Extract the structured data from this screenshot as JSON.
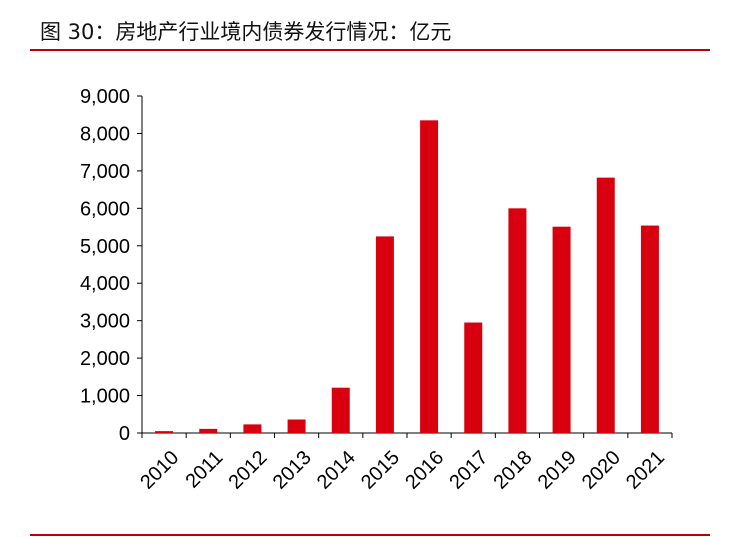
{
  "header": {
    "figure_title": "图 30：房地产行业境内债券发行情况：亿元"
  },
  "colors": {
    "bar": "#d8000f",
    "rule": "#c00000"
  },
  "chart_data": {
    "type": "bar",
    "title": "",
    "xlabel": "",
    "ylabel": "",
    "categories": [
      "2010",
      "2011",
      "2012",
      "2013",
      "2014",
      "2015",
      "2016",
      "2017",
      "2018",
      "2019",
      "2020",
      "2021"
    ],
    "values": [
      50,
      110,
      230,
      360,
      1210,
      5250,
      8350,
      2950,
      6000,
      5510,
      6820,
      5540
    ],
    "ylim": [
      0,
      9000
    ],
    "yticks": [
      0,
      1000,
      2000,
      3000,
      4000,
      5000,
      6000,
      7000,
      8000,
      9000
    ],
    "ytick_labels": [
      "0",
      "1,000",
      "2,000",
      "3,000",
      "4,000",
      "5,000",
      "6,000",
      "7,000",
      "8,000",
      "9,000"
    ],
    "grid": false,
    "legend": "none"
  }
}
